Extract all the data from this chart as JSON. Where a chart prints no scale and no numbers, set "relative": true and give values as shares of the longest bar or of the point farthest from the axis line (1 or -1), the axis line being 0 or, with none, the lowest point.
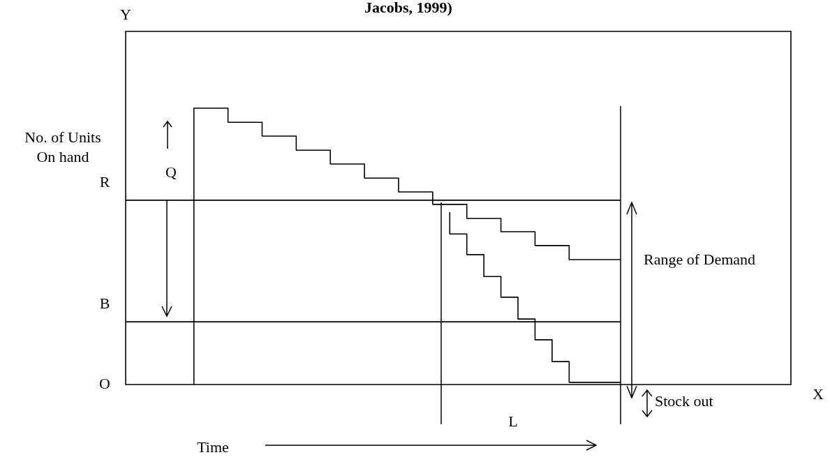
{
  "chart_data": {
    "type": "step",
    "title": "Jacobs, 1999)",
    "xlabel": "Time",
    "ylabel": "No. of Units\nOn hand",
    "relative": true,
    "legend": false,
    "marker": "none",
    "line_style": "solid",
    "categories": [
      null,
      null,
      null,
      null,
      null,
      null,
      null,
      null,
      null,
      null,
      null,
      null,
      null,
      null,
      null,
      null,
      null,
      null,
      null,
      null,
      null,
      null,
      null,
      null,
      null,
      null,
      null,
      null,
      null,
      null,
      null,
      null,
      null,
      null,
      null,
      null,
      null,
      null,
      null,
      null
    ],
    "series": [
      {
        "color": "#000000",
        "values": [
          null,
          null,
          null,
          null,
          0,
          1,
          1,
          0.949,
          0.949,
          0.899,
          0.899,
          0.848,
          0.848,
          0.798,
          0.798,
          0.747,
          0.747,
          0.697,
          0.697,
          0.652,
          0.652,
          0.601,
          0.601,
          0.553,
          0.553,
          0.503,
          0.503,
          0.452,
          0.452,
          0.452,
          null,
          null,
          null,
          null,
          null,
          null,
          null,
          null,
          null,
          null
        ]
      },
      {
        "color": "#000000",
        "values": [
          null,
          null,
          null,
          null,
          null,
          null,
          null,
          null,
          null,
          null,
          null,
          null,
          null,
          null,
          null,
          null,
          null,
          null,
          null,
          0.624,
          0.545,
          0.47,
          0.391,
          0.316,
          0.237,
          0.162,
          0.083,
          0.008,
          0.008,
          0.008,
          null,
          null,
          null,
          null,
          null,
          null,
          null,
          null,
          null,
          null
        ]
      }
    ],
    "ref_lines": [
      {
        "axis": "y",
        "value": 0.667,
        "label": "R",
        "color": "#000000"
      },
      {
        "axis": "y",
        "value": 0.227,
        "label": "B",
        "color": "#000000"
      }
    ],
    "annotations": [
      "Q",
      "Range of Demand",
      "Stock out",
      "Y",
      "X",
      "L",
      "O"
    ]
  }
}
